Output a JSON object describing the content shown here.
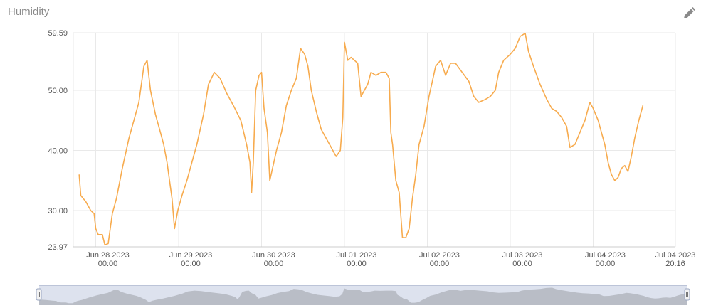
{
  "header": {
    "title": "Humidity",
    "edit_icon": "pencil-icon"
  },
  "colors": {
    "line": "#f7ab4e",
    "grid": "#e9e9e9",
    "navigator_fill": "#b9bdc6",
    "navigator_bg": "#dde2ee",
    "handle": "#9aa7c2"
  },
  "chart_data": {
    "type": "line",
    "title": "Humidity",
    "xlabel": "",
    "ylabel": "",
    "ylim": [
      23.97,
      59.59
    ],
    "y_ticks": [
      "59.59",
      "50.00",
      "40.00",
      "30.00",
      "23.97"
    ],
    "x_ticks": [
      {
        "line1": "Jun 28 2023",
        "line2": "00:00"
      },
      {
        "line1": "Jun 29 2023",
        "line2": "00:00"
      },
      {
        "line1": "Jun 30 2023",
        "line2": "00:00"
      },
      {
        "line1": "Jul 01 2023",
        "line2": "00:00"
      },
      {
        "line1": "Jul 02 2023",
        "line2": "00:00"
      },
      {
        "line1": "Jul 03 2023",
        "line2": "00:00"
      },
      {
        "line1": "Jul 04 2023",
        "line2": "00:00"
      },
      {
        "line1": "Jul 04 2023",
        "line2": "20:16"
      }
    ],
    "x_unit": "days from Jun 28 2023 00:00",
    "grid": true,
    "legend": "none",
    "series": [
      {
        "values": [
          [
            -0.2,
            36.0
          ],
          [
            -0.18,
            32.5
          ],
          [
            -0.12,
            31.5
          ],
          [
            -0.06,
            30.0
          ],
          [
            -0.02,
            29.5
          ],
          [
            0.0,
            27.0
          ],
          [
            0.03,
            26.0
          ],
          [
            0.08,
            26.0
          ],
          [
            0.11,
            24.3
          ],
          [
            0.15,
            24.5
          ],
          [
            0.2,
            29.5
          ],
          [
            0.25,
            32.0
          ],
          [
            0.32,
            37.0
          ],
          [
            0.4,
            42.0
          ],
          [
            0.46,
            45.0
          ],
          [
            0.52,
            48.0
          ],
          [
            0.58,
            54.0
          ],
          [
            0.62,
            55.0
          ],
          [
            0.66,
            50.0
          ],
          [
            0.72,
            46.0
          ],
          [
            0.78,
            43.0
          ],
          [
            0.82,
            41.0
          ],
          [
            0.86,
            38.0
          ],
          [
            0.89,
            35.0
          ],
          [
            0.92,
            32.0
          ],
          [
            0.95,
            27.0
          ],
          [
            0.99,
            30.0
          ],
          [
            1.04,
            32.5
          ],
          [
            1.1,
            35.0
          ],
          [
            1.16,
            38.0
          ],
          [
            1.22,
            41.0
          ],
          [
            1.3,
            46.0
          ],
          [
            1.36,
            51.0
          ],
          [
            1.43,
            53.0
          ],
          [
            1.5,
            52.0
          ],
          [
            1.58,
            49.5
          ],
          [
            1.66,
            47.5
          ],
          [
            1.75,
            45.0
          ],
          [
            1.82,
            41.0
          ],
          [
            1.86,
            38.0
          ],
          [
            1.88,
            33.0
          ],
          [
            1.9,
            38.0
          ],
          [
            1.93,
            50.0
          ],
          [
            1.97,
            52.5
          ],
          [
            2.0,
            53.0
          ],
          [
            2.03,
            47.0
          ],
          [
            2.07,
            43.0
          ],
          [
            2.1,
            35.0
          ],
          [
            2.14,
            37.5
          ],
          [
            2.18,
            40.0
          ],
          [
            2.24,
            43.0
          ],
          [
            2.3,
            47.5
          ],
          [
            2.36,
            50.0
          ],
          [
            2.42,
            52.0
          ],
          [
            2.47,
            57.0
          ],
          [
            2.52,
            56.0
          ],
          [
            2.56,
            54.0
          ],
          [
            2.6,
            50.0
          ],
          [
            2.66,
            46.5
          ],
          [
            2.72,
            43.5
          ],
          [
            2.78,
            42.0
          ],
          [
            2.84,
            40.5
          ],
          [
            2.9,
            39.0
          ],
          [
            2.95,
            40.0
          ],
          [
            2.98,
            45.5
          ],
          [
            3.0,
            58.0
          ],
          [
            3.04,
            55.0
          ],
          [
            3.08,
            55.5
          ],
          [
            3.12,
            55.0
          ],
          [
            3.16,
            54.5
          ],
          [
            3.2,
            49.0
          ],
          [
            3.24,
            50.0
          ],
          [
            3.28,
            51.0
          ],
          [
            3.32,
            53.0
          ],
          [
            3.38,
            52.5
          ],
          [
            3.44,
            53.0
          ],
          [
            3.5,
            53.0
          ],
          [
            3.54,
            52.0
          ],
          [
            3.56,
            43.0
          ],
          [
            3.58,
            41.0
          ],
          [
            3.62,
            35.0
          ],
          [
            3.66,
            33.0
          ],
          [
            3.7,
            25.5
          ],
          [
            3.74,
            25.5
          ],
          [
            3.78,
            27.0
          ],
          [
            3.82,
            32.0
          ],
          [
            3.86,
            36.0
          ],
          [
            3.9,
            41.0
          ],
          [
            3.96,
            44.0
          ],
          [
            4.02,
            49.0
          ],
          [
            4.06,
            51.5
          ],
          [
            4.1,
            54.0
          ],
          [
            4.16,
            55.0
          ],
          [
            4.22,
            52.5
          ],
          [
            4.28,
            54.5
          ],
          [
            4.34,
            54.5
          ],
          [
            4.42,
            53.0
          ],
          [
            4.5,
            51.5
          ],
          [
            4.56,
            49.0
          ],
          [
            4.62,
            48.0
          ],
          [
            4.7,
            48.5
          ],
          [
            4.76,
            49.0
          ],
          [
            4.82,
            50.0
          ],
          [
            4.86,
            53.0
          ],
          [
            4.92,
            55.0
          ],
          [
            5.0,
            56.0
          ],
          [
            5.06,
            57.0
          ],
          [
            5.12,
            59.0
          ],
          [
            5.18,
            59.5
          ],
          [
            5.22,
            56.5
          ],
          [
            5.28,
            54.0
          ],
          [
            5.36,
            51.0
          ],
          [
            5.44,
            48.5
          ],
          [
            5.5,
            47.0
          ],
          [
            5.56,
            46.5
          ],
          [
            5.62,
            45.5
          ],
          [
            5.68,
            44.0
          ],
          [
            5.72,
            40.5
          ],
          [
            5.78,
            41.0
          ],
          [
            5.84,
            43.0
          ],
          [
            5.9,
            45.0
          ],
          [
            5.96,
            48.0
          ],
          [
            6.0,
            47.0
          ],
          [
            6.06,
            45.0
          ],
          [
            6.1,
            43.0
          ],
          [
            6.14,
            41.0
          ],
          [
            6.18,
            38.0
          ],
          [
            6.22,
            36.0
          ],
          [
            6.26,
            35.0
          ],
          [
            6.3,
            35.5
          ],
          [
            6.34,
            37.0
          ],
          [
            6.38,
            37.5
          ],
          [
            6.42,
            36.5
          ],
          [
            6.46,
            39.0
          ],
          [
            6.5,
            42.0
          ],
          [
            6.55,
            45.0
          ],
          [
            6.6,
            47.5
          ]
        ]
      }
    ],
    "navigator": true
  }
}
